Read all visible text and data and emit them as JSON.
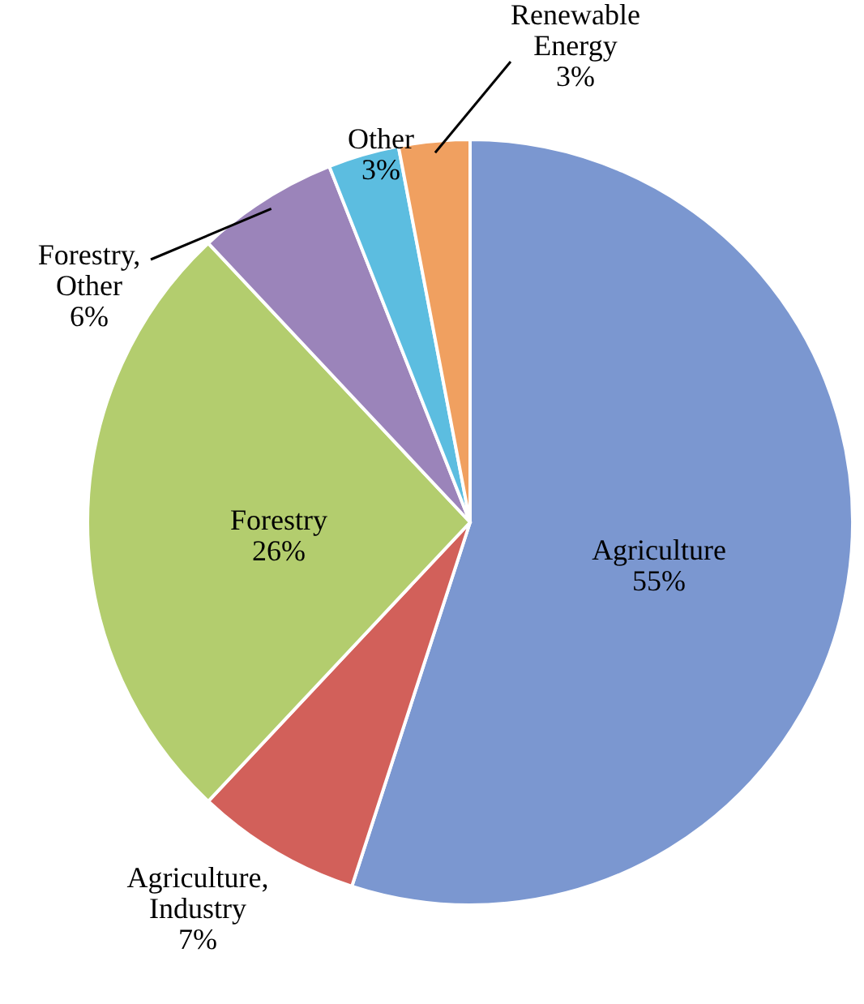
{
  "chart_data": {
    "type": "pie",
    "categories": [
      "Agriculture",
      "Agriculture, Industry",
      "Forestry",
      "Forestry, Other",
      "Other",
      "Renewable Energy"
    ],
    "values": [
      55,
      7,
      26,
      6,
      3,
      3
    ],
    "colors": [
      "#7b97d0",
      "#d2605a",
      "#b3cd6e",
      "#9b84ba",
      "#5cbde0",
      "#f0a060"
    ],
    "value_labels": [
      "55%",
      "7%",
      "26%",
      "6%",
      "3%",
      "3%"
    ]
  }
}
